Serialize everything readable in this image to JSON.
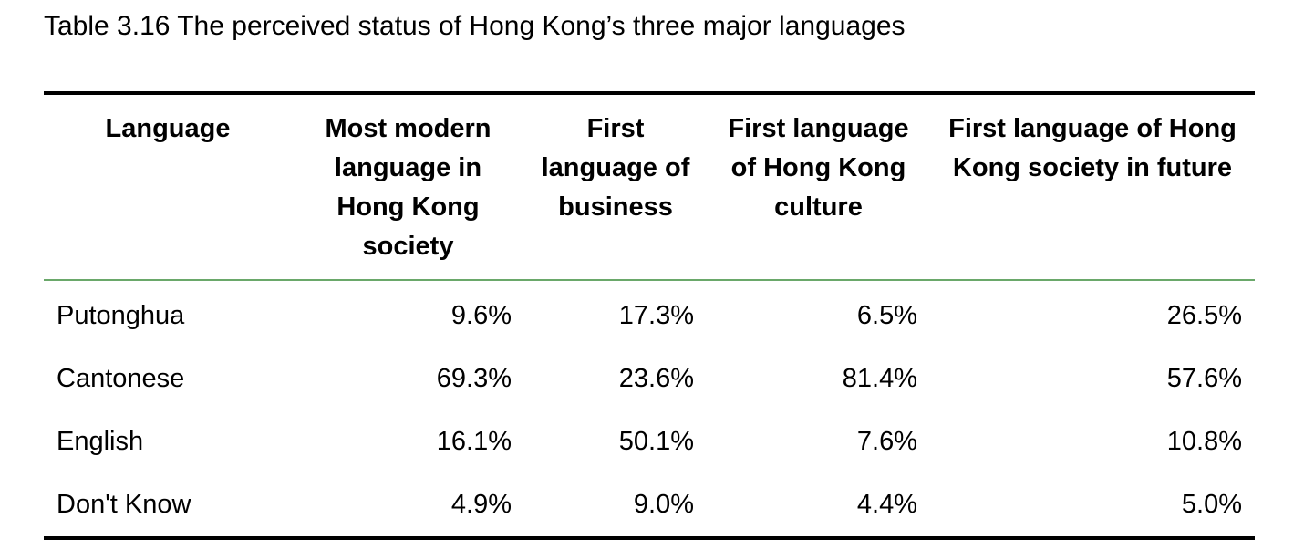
{
  "title": "Table 3.16 The perceived status of Hong Kong’s three major languages",
  "table": {
    "header": [
      "Language",
      "Most modern language in Hong Kong society",
      "First language of business",
      "First language of Hong Kong culture",
      "First language of Hong Kong society in future"
    ],
    "rows": [
      [
        "Putonghua",
        "9.6%",
        "17.3%",
        "6.5%",
        "26.5%"
      ],
      [
        "Cantonese",
        "69.3%",
        "23.6%",
        "81.4%",
        "57.6%"
      ],
      [
        "English",
        "16.1%",
        "50.1%",
        "7.6%",
        "10.8%"
      ],
      [
        "Don't Know",
        "4.9%",
        "9.0%",
        "4.4%",
        "5.0%"
      ]
    ]
  }
}
